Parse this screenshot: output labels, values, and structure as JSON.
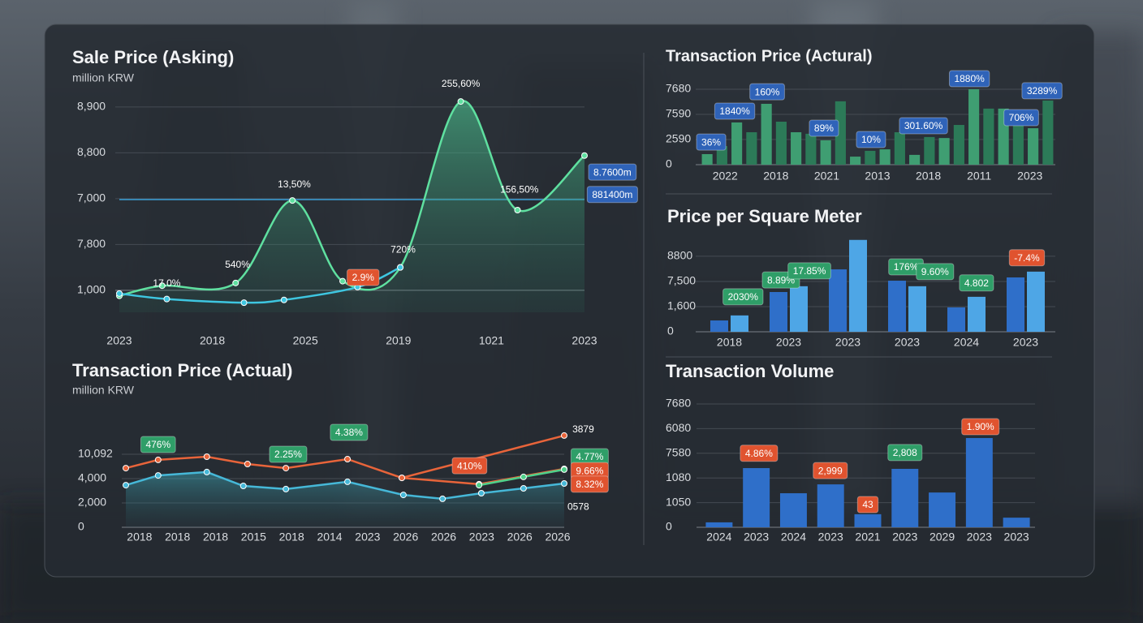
{
  "chart_data": [
    {
      "type": "line",
      "title": "Sale Price (Asking)",
      "subtitle": "million KRW",
      "y_labels": [
        "1,000",
        "7,800",
        "7,000",
        "8,800",
        "8,900"
      ],
      "x_labels": [
        "2023",
        "2018",
        "2025",
        "2019",
        "1021",
        "2023"
      ],
      "xlim": [
        0,
        5
      ],
      "ylim": [
        -0.48,
        4.7
      ],
      "reference_line": 1.98,
      "reference_color": "#3aa0d8",
      "series": [
        {
          "color": "#5fe0a0",
          "area": true,
          "x": [
            0,
            0.46,
            1.25,
            1.86,
            2.4,
            3.02,
            3.67,
            4.28,
            5
          ],
          "y": [
            -0.12,
            0.1,
            0.16,
            1.96,
            0.2,
            0.5,
            4.12,
            1.75,
            2.94
          ]
        },
        {
          "color": "#3ec6e0",
          "area": false,
          "x": [
            0,
            0.51,
            1.34,
            1.77,
            2.56,
            3.02
          ],
          "y": [
            -0.07,
            -0.19,
            -0.27,
            -0.21,
            0.07,
            0.5
          ]
        }
      ],
      "annotations": [
        {
          "text": "17.0%",
          "x": 0.51,
          "y": 0.14,
          "style": "plain"
        },
        {
          "text": "540%",
          "x": 1.27,
          "y": 0.55,
          "style": "plain"
        },
        {
          "text": "13,50%",
          "x": 1.88,
          "y": 2.3,
          "style": "plain"
        },
        {
          "text": "2.9%",
          "x": 2.62,
          "y": 0.28,
          "style": "orange"
        },
        {
          "text": "720%",
          "x": 3.05,
          "y": 0.88,
          "style": "plain"
        },
        {
          "text": "255,60%",
          "x": 3.67,
          "y": 4.5,
          "style": "plain"
        },
        {
          "text": "156,50%",
          "x": 4.3,
          "y": 2.19,
          "style": "plain"
        },
        {
          "text": "8.7600m",
          "x": 5.3,
          "y": 2.58,
          "style": "blue"
        },
        {
          "text": "881400m",
          "x": 5.3,
          "y": 2.09,
          "style": "blue"
        }
      ]
    },
    {
      "type": "bar",
      "title": "Transaction Price (Actural)",
      "y_labels": [
        "0",
        "2590",
        "7590",
        "7680"
      ],
      "x_labels": [
        "2022",
        "2018",
        "2021",
        "2013",
        "2018",
        "2011",
        "2023"
      ],
      "ylim": [
        0,
        3.5
      ],
      "colors": [
        "#3f9e72",
        "#2c7a58"
      ],
      "values": [
        0.42,
        0.74,
        1.68,
        1.29,
        2.42,
        1.71,
        1.29,
        1.23,
        0.97,
        2.52,
        0.32,
        0.55,
        0.61,
        1.29,
        0.39,
        1.1,
        1.06,
        1.58,
        3.0,
        2.23,
        2.23,
        2.03,
        1.45,
        2.55
      ],
      "annotations": [
        {
          "text": "36%",
          "x": 0.27,
          "y": 0.9,
          "style": "blue"
        },
        {
          "text": "1840%",
          "x": 1.86,
          "y": 2.13,
          "style": "blue"
        },
        {
          "text": "160%",
          "x": 4.05,
          "y": 2.9,
          "style": "blue"
        },
        {
          "text": "89%",
          "x": 7.88,
          "y": 1.45,
          "style": "blue"
        },
        {
          "text": "10%",
          "x": 11.06,
          "y": 1.0,
          "style": "blue"
        },
        {
          "text": "301.60%",
          "x": 14.6,
          "y": 1.55,
          "style": "blue"
        },
        {
          "text": "1880%",
          "x": 17.7,
          "y": 3.42,
          "style": "blue"
        },
        {
          "text": "706%",
          "x": 21.2,
          "y": 1.87,
          "style": "blue"
        },
        {
          "text": "3289%",
          "x": 22.6,
          "y": 2.94,
          "style": "blue"
        }
      ]
    },
    {
      "type": "groupbar",
      "title": "Price per Square Meter",
      "y_labels": [
        "0",
        "1,600",
        "7,500",
        "8800"
      ],
      "x_labels": [
        "2018",
        "2023",
        "2023",
        "2023",
        "2024",
        "2023"
      ],
      "ylim": [
        0,
        3.9
      ],
      "series": [
        {
          "color": "#2f6fc9",
          "values": [
            0.45,
            1.58,
            2.48,
            2.03,
            0.97,
            2.16
          ]
        },
        {
          "color": "#4ea6e6",
          "values": [
            0.65,
            1.81,
            3.65,
            1.81,
            1.39,
            2.39
          ]
        }
      ],
      "annotations": [
        {
          "text": "2030%",
          "x": 0.23,
          "y": 1.39,
          "style": "green"
        },
        {
          "text": "8.89%",
          "x": 0.87,
          "y": 2.06,
          "style": "green"
        },
        {
          "text": "17.85%",
          "x": 1.35,
          "y": 2.42,
          "style": "green"
        },
        {
          "text": "176%",
          "x": 2.98,
          "y": 2.58,
          "style": "green"
        },
        {
          "text": "9.60%",
          "x": 3.47,
          "y": 2.39,
          "style": "green"
        },
        {
          "text": "4.802",
          "x": 4.17,
          "y": 1.94,
          "style": "green"
        },
        {
          "text": "-7.4%",
          "x": 5.02,
          "y": 2.94,
          "style": "orange"
        }
      ]
    },
    {
      "type": "line",
      "title": "Transaction Price (Actual)",
      "subtitle": "million KRW",
      "y_labels": [
        "0",
        "2,000",
        "4,000",
        "10,092"
      ],
      "x_labels": [
        "2018",
        "2018",
        "2018",
        "2015",
        "2018",
        "2014",
        "2023",
        "2026",
        "2026",
        "2023",
        "2026",
        "2026"
      ],
      "xlim": [
        -0.36,
        11.17
      ],
      "ylim": [
        0,
        4
      ],
      "series": [
        {
          "color": "#e8643a",
          "area": false,
          "x": [
            -0.36,
            0.49,
            1.77,
            2.84,
            3.85,
            5.47,
            6.9,
            8.93,
            11.17
          ],
          "y": [
            2.43,
            2.77,
            2.9,
            2.6,
            2.43,
            2.8,
            2.03,
            1.77,
            2.4
          ]
        },
        {
          "color": "#e8643a",
          "area": false,
          "x": [
            6.9,
            11.17
          ],
          "y": [
            2.03,
            3.77
          ]
        },
        {
          "color": "#46b8d8",
          "area": true,
          "x": [
            -0.36,
            0.49,
            1.77,
            2.73,
            3.85,
            5.47,
            6.94,
            7.97,
            8.99,
            10.1,
            11.17
          ],
          "y": [
            1.73,
            2.13,
            2.27,
            1.7,
            1.57,
            1.87,
            1.33,
            1.17,
            1.4,
            1.6,
            1.8
          ]
        },
        {
          "color": "#4fd08a",
          "area": false,
          "x": [
            8.93,
            10.1,
            11.17
          ],
          "y": [
            1.73,
            2.07,
            2.37
          ]
        }
      ],
      "annotations": [
        {
          "text": "476%",
          "x": 0.49,
          "y": 3.4,
          "style": "green"
        },
        {
          "text": "2.25%",
          "x": 3.91,
          "y": 3.0,
          "style": "green"
        },
        {
          "text": "4.38%",
          "x": 5.51,
          "y": 3.9,
          "style": "green"
        },
        {
          "text": "410%",
          "x": 8.68,
          "y": 2.53,
          "style": "orange"
        },
        {
          "text": "3879",
          "x": 11.67,
          "y": 4.0,
          "style": "plain"
        },
        {
          "text": "4.77%",
          "x": 11.84,
          "y": 2.9,
          "style": "green"
        },
        {
          "text": "9.66%",
          "x": 11.84,
          "y": 2.33,
          "style": "orange"
        },
        {
          "text": "8.32%",
          "x": 11.84,
          "y": 1.77,
          "style": "orange"
        },
        {
          "text": "0578",
          "x": 11.54,
          "y": 0.83,
          "style": "plain"
        }
      ]
    },
    {
      "type": "bar",
      "title": "Transaction Volume",
      "y_labels": [
        "0",
        "1050",
        "1080",
        "7580",
        "6080",
        "7680"
      ],
      "x_labels": [
        "2024",
        "2023",
        "2024",
        "2023",
        "2021",
        "2023",
        "2029",
        "2023",
        "2023"
      ],
      "ylim": [
        0,
        5
      ],
      "colors": [
        "#2f6fc9"
      ],
      "values": [
        0.2,
        2.4,
        1.38,
        1.74,
        0.53,
        2.37,
        1.41,
        3.62,
        0.39
      ],
      "annotations": [
        {
          "text": "4.86%",
          "x": 1.07,
          "y": 3.0,
          "style": "orange"
        },
        {
          "text": "2,999",
          "x": 2.99,
          "y": 2.3,
          "style": "orange"
        },
        {
          "text": "43",
          "x": 4.0,
          "y": 0.92,
          "style": "orange"
        },
        {
          "text": "2,808",
          "x": 5.0,
          "y": 3.03,
          "style": "green"
        },
        {
          "text": "1.90%",
          "x": 7.03,
          "y": 4.08,
          "style": "orange"
        }
      ]
    }
  ]
}
